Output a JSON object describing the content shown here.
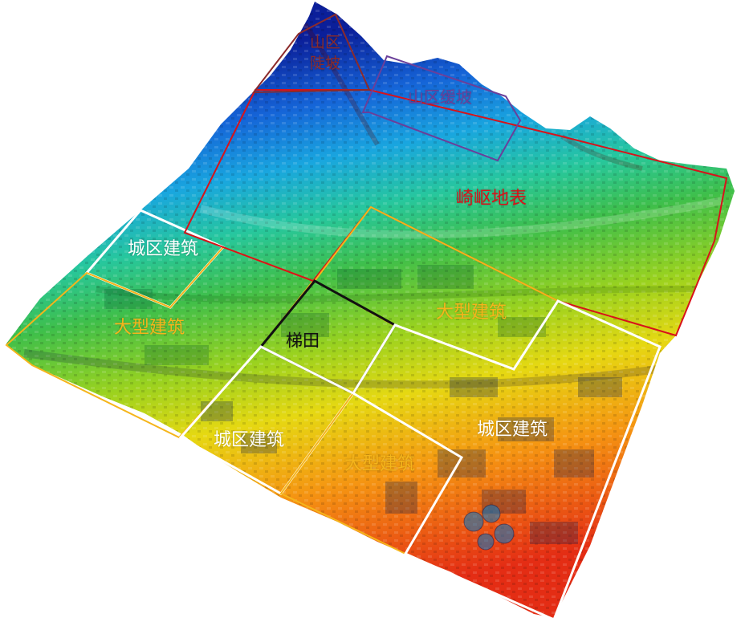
{
  "colors": {
    "background": "#ffffff",
    "ramp": [
      "#0b1f9a",
      "#1565d8",
      "#19a6df",
      "#27c79d",
      "#3fbf4a",
      "#9ad21f",
      "#e6d812",
      "#f59512",
      "#e42d14"
    ],
    "urban_building": "#ffffff",
    "large_building": "#f5b51b",
    "rugged_surface": "#d8121a",
    "terraced_field": "#111111",
    "mountain_gentle": "#6a3f9a",
    "mountain_steep": "#8c2b2b"
  },
  "regions": {
    "mountain_steep": {
      "label": "山区\n陡坡",
      "color": "#8c2b2b"
    },
    "mountain_gentle": {
      "label": "山区缓坡",
      "color": "#6a3f9a"
    },
    "rugged_surface": {
      "label": "崎岖地表",
      "color": "#d8121a"
    },
    "urban_building_nw": {
      "label": "城区建筑",
      "color": "#ffffff"
    },
    "large_building_w": {
      "label": "大型建筑",
      "color": "#f5b51b"
    },
    "large_building_ne": {
      "label": "大型建筑",
      "color": "#f5b51b"
    },
    "terraced_field": {
      "label": "梯田",
      "color": "#111111"
    },
    "urban_building_sw": {
      "label": "城区建筑",
      "color": "#ffffff"
    },
    "large_building_s": {
      "label": "大型建筑",
      "color": "#f5b51b"
    },
    "urban_building_se": {
      "label": "城区建筑",
      "color": "#ffffff"
    }
  }
}
